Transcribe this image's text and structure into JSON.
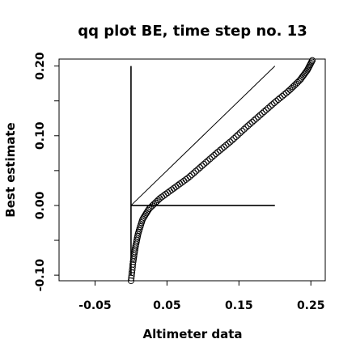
{
  "chart_data": {
    "type": "scatter",
    "title": "qq plot BE, time step no. 13",
    "xlabel": "Altimeter data",
    "ylabel": "Best estimate",
    "xlim": [
      -0.1,
      0.27
    ],
    "ylim": [
      -0.108,
      0.21
    ],
    "x_ticks": [
      -0.05,
      0.05,
      0.15,
      0.25
    ],
    "x_tick_labels": [
      "-0.05",
      "0.05",
      "0.15",
      "0.25"
    ],
    "y_ticks": [
      -0.1,
      0.0,
      0.1,
      0.2
    ],
    "y_tick_labels": [
      "-0.10",
      "0.00",
      "0.10",
      "0.20"
    ],
    "marker": "open-circle",
    "grid": false,
    "reference_lines": [
      {
        "name": "identity",
        "x": [
          0.0,
          0.2
        ],
        "y": [
          0.0,
          0.2
        ]
      },
      {
        "name": "horizontal-zero",
        "x": [
          0.0,
          0.2
        ],
        "y": [
          0.0,
          0.0
        ]
      },
      {
        "name": "vertical-zero",
        "x": [
          0.0,
          0.0
        ],
        "y": [
          -0.1,
          0.2
        ]
      }
    ],
    "qq_curve_knots": {
      "x": [
        0.0,
        0.003,
        0.006,
        0.01,
        0.016,
        0.025,
        0.04,
        0.06,
        0.08,
        0.1,
        0.12,
        0.14,
        0.16,
        0.18,
        0.2,
        0.22,
        0.235,
        0.245,
        0.252
      ],
      "y": [
        -0.108,
        -0.08,
        -0.06,
        -0.04,
        -0.02,
        -0.005,
        0.01,
        0.025,
        0.04,
        0.058,
        0.076,
        0.093,
        0.112,
        0.13,
        0.148,
        0.165,
        0.18,
        0.194,
        0.208
      ]
    },
    "n_points": 130
  }
}
